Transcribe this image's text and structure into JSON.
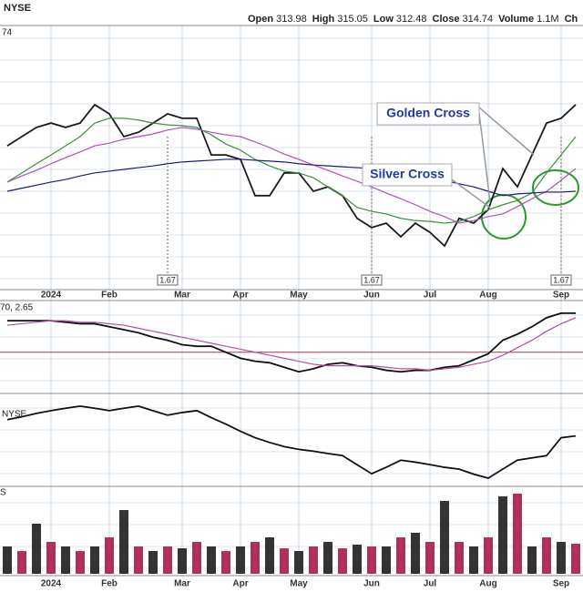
{
  "header": {
    "exchange": "NYSE",
    "quote": [
      {
        "label": "Open",
        "value": 313.98
      },
      {
        "label": "High",
        "value": 315.05
      },
      {
        "label": "Low",
        "value": 312.48
      },
      {
        "label": "Close",
        "value": 314.74
      },
      {
        "label": "Volume",
        "value": "1.1M"
      },
      {
        "label": "Ch"
      }
    ],
    "fragments": [
      "74",
      "70, 2.65",
      "NYSE",
      "S"
    ]
  },
  "chart_data": [
    {
      "type": "line",
      "categories": [
        null,
        null,
        null,
        "2024",
        null,
        null,
        null,
        "Feb",
        null,
        null,
        null,
        null,
        "Mar",
        null,
        null,
        null,
        "Apr",
        null,
        null,
        null,
        "May",
        null,
        null,
        null,
        null,
        "Jun",
        null,
        null,
        null,
        "Jul",
        null,
        null,
        null,
        "Aug",
        null,
        null,
        null,
        null,
        "Sep",
        null
      ],
      "ylim": [
        270,
        330
      ],
      "series": [
        {
          "color": "#1a1a1a",
          "values": [
            302.9,
            305.0,
            307.1,
            308.1,
            307.1,
            308.1,
            312.3,
            310.2,
            305.0,
            306.0,
            308.1,
            310.2,
            309.2,
            309.2,
            300.8,
            300.8,
            299.8,
            291.5,
            291.5,
            296.7,
            296.7,
            292.5,
            293.5,
            291.5,
            286.3,
            284.2,
            285.2,
            282.1,
            285.2,
            283.1,
            280.0,
            286.3,
            285.2,
            288.3,
            297.7,
            293.5,
            300.8,
            308.1,
            309.2,
            312.3
          ]
        },
        {
          "color": "#3a8f3a",
          "values": [
            294.6,
            296.7,
            298.8,
            300.8,
            302.9,
            305.0,
            308.1,
            309.2,
            309.2,
            308.8,
            308.1,
            307.7,
            307.5,
            307.1,
            305.4,
            303.3,
            301.9,
            299.8,
            298.3,
            297.1,
            296.7,
            295.6,
            293.5,
            291.5,
            288.8,
            287.9,
            287.3,
            286.3,
            285.8,
            285.6,
            285.2,
            285.6,
            286.7,
            288.3,
            289.4,
            290.4,
            292.1,
            296.7,
            300.8,
            305.0
          ]
        },
        {
          "color": "#b050c0",
          "values": [
            294.6,
            296.0,
            297.3,
            298.8,
            300.2,
            301.5,
            302.9,
            303.5,
            304.4,
            305.0,
            305.6,
            306.5,
            307.1,
            306.7,
            306.0,
            305.4,
            305.0,
            303.8,
            302.5,
            301.0,
            299.8,
            298.5,
            297.3,
            296.0,
            294.8,
            293.5,
            292.1,
            290.8,
            289.4,
            287.9,
            286.7,
            285.2,
            285.8,
            286.7,
            287.3,
            289.0,
            290.8,
            292.5,
            295.0,
            297.7
          ]
        },
        {
          "color": "#1a1a80",
          "values": [
            292.5,
            293.2,
            293.9,
            294.6,
            295.2,
            296.0,
            296.7,
            297.1,
            297.5,
            297.9,
            298.3,
            298.8,
            299.2,
            299.4,
            299.6,
            299.8,
            299.8,
            299.6,
            299.4,
            299.2,
            298.8,
            298.5,
            298.3,
            298.1,
            297.9,
            297.7,
            297.3,
            296.7,
            296.0,
            295.6,
            295.0,
            294.2,
            293.5,
            292.5,
            291.5,
            291.9,
            292.1,
            292.3,
            292.3,
            292.5
          ]
        }
      ],
      "dividends": [
        null,
        null,
        null,
        null,
        null,
        null,
        null,
        null,
        null,
        null,
        null,
        1.67,
        null,
        null,
        null,
        null,
        null,
        null,
        null,
        null,
        null,
        null,
        null,
        null,
        null,
        1.67,
        null,
        null,
        null,
        null,
        null,
        null,
        null,
        null,
        null,
        null,
        null,
        null,
        1.67,
        null
      ],
      "annotations": [
        "Golden Cross",
        "Silver Cross"
      ]
    },
    {
      "type": "line",
      "ylim": [
        -2.5,
        3.2
      ],
      "hline": 0,
      "hline_color": "#b0304a",
      "series": [
        {
          "color": "#111111",
          "values": [
            2.1,
            2.1,
            2.1,
            2.1,
            2.0,
            1.9,
            1.9,
            1.7,
            1.5,
            1.3,
            1.0,
            0.8,
            0.5,
            0.4,
            0.4,
            0,
            -0.4,
            -0.6,
            -0.7,
            -1.0,
            -1.3,
            -1.1,
            -0.8,
            -0.7,
            -0.9,
            -1.0,
            -1.2,
            -1.3,
            -1.2,
            -1.2,
            -1.0,
            -0.9,
            -0.5,
            -0.1,
            0.8,
            1.2,
            1.7,
            2.3,
            2.6,
            2.6
          ]
        },
        {
          "color": "#b050a0",
          "values": [
            1.8,
            1.9,
            2.0,
            2.1,
            2.1,
            2.0,
            2.0,
            1.9,
            1.8,
            1.6,
            1.4,
            1.2,
            1.0,
            0.8,
            0.6,
            0.4,
            0.2,
            0,
            -0.2,
            -0.4,
            -0.6,
            -0.8,
            -0.9,
            -0.9,
            -0.9,
            -0.9,
            -1.0,
            -1.1,
            -1.1,
            -1.2,
            -1.1,
            -1.0,
            -0.8,
            -0.6,
            -0.2,
            0.3,
            0.8,
            1.4,
            1.9,
            2.3
          ]
        }
      ]
    },
    {
      "type": "line",
      "ylim": [
        0,
        100
      ],
      "series": [
        {
          "color": "#111111",
          "values": [
            73.7,
            77,
            81,
            84.2,
            87,
            89.5,
            87,
            84.2,
            87,
            89.5,
            84,
            78.9,
            82,
            84.2,
            76,
            68.4,
            60,
            52.6,
            47,
            42.1,
            39,
            36.8,
            34,
            31.6,
            21,
            10.5,
            18,
            26.3,
            24,
            21.1,
            18,
            15.8,
            10,
            5.3,
            16,
            26.3,
            29,
            31.6,
            52.6,
            54.7
          ]
        }
      ]
    },
    {
      "type": "bar",
      "ylim": [
        0,
        3000000
      ],
      "bar_colors": [
        "#333333",
        "#b0305a"
      ],
      "values": [
        1000000,
        833000,
        1833000,
        1167000,
        1000000,
        833000,
        1000000,
        1333000,
        2333000,
        1000000,
        833000,
        1000000,
        933000,
        1167000,
        1000000,
        833000,
        1000000,
        1167000,
        1333000,
        933000,
        833000,
        1000000,
        1167000,
        933000,
        1067000,
        1000000,
        1000000,
        1333000,
        1500000,
        1167000,
        2667000,
        1167000,
        1000000,
        1333000,
        2833000,
        2933000,
        1000000,
        1333000,
        1167000,
        1100000
      ]
    }
  ]
}
